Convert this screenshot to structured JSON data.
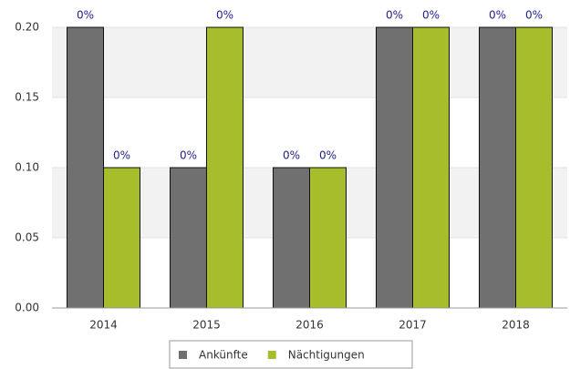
{
  "chart_data": {
    "type": "bar",
    "categories": [
      "2014",
      "2015",
      "2016",
      "2017",
      "2018"
    ],
    "series": [
      {
        "name": "Ankünfte",
        "color": "#707070",
        "values": [
          0.2,
          0.1,
          0.1,
          0.2,
          0.2
        ],
        "value_labels": [
          "0%",
          "0%",
          "0%",
          "0%",
          "0%"
        ]
      },
      {
        "name": "Nächtigungen",
        "color": "#a8bd2b",
        "values": [
          0.1,
          0.2,
          0.1,
          0.2,
          0.2
        ],
        "value_labels": [
          "0%",
          "0%",
          "0%",
          "0%",
          "0%"
        ]
      }
    ],
    "ylim": [
      0,
      0.2
    ],
    "yticks": [
      {
        "value": 0,
        "label": "0.00"
      },
      {
        "value": 0.05,
        "label": "0.05"
      },
      {
        "value": 0.1,
        "label": "0.10"
      },
      {
        "value": 0.15,
        "label": "0.15"
      },
      {
        "value": 0.2,
        "label": "0.20"
      }
    ],
    "grid": true,
    "legend": "bottom"
  }
}
